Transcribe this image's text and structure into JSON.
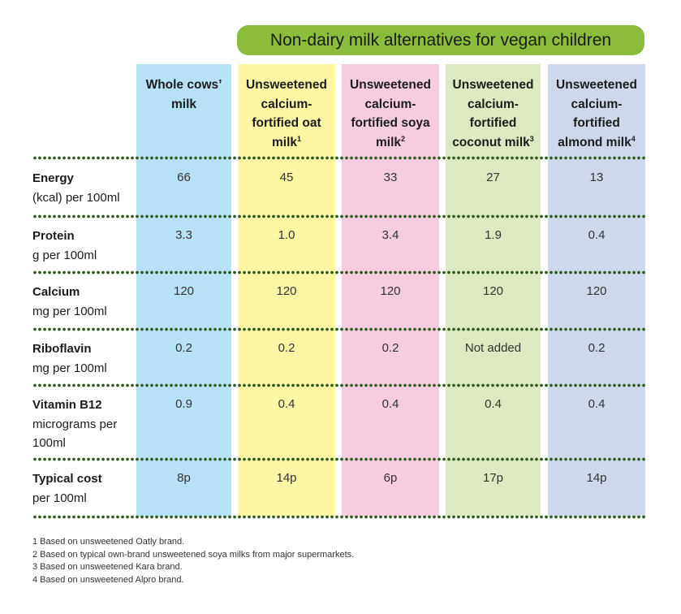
{
  "title": "Non-dairy milk alternatives for vegan children",
  "colors": {
    "banner": "#8cbc3b",
    "dots": "#2e5a1e",
    "cow": "#b7e2f6",
    "oat": "#fbf7a5",
    "soya": "#f6cde0",
    "coconut": "#dde9c3",
    "almond": "#cfd8ea"
  },
  "columns": [
    {
      "name": "Whole cows’ milk",
      "lines": [
        "Whole cows’",
        "milk"
      ],
      "sup": ""
    },
    {
      "name": "Unsweetened calcium-fortified oat milk",
      "lines": [
        "Unsweetened",
        "calcium-",
        "fortified oat",
        "milk"
      ],
      "sup": "1"
    },
    {
      "name": "Unsweetened calcium-fortified soya milk",
      "lines": [
        "Unsweetened",
        "calcium-",
        "fortified soya",
        "milk"
      ],
      "sup": "2"
    },
    {
      "name": "Unsweetened calcium-fortified coconut milk",
      "lines": [
        "Unsweetened",
        "calcium-",
        "fortified",
        "coconut milk"
      ],
      "sup": "3"
    },
    {
      "name": "Unsweetened calcium-fortified almond milk",
      "lines": [
        "Unsweetened",
        "calcium-",
        "fortified",
        "almond milk"
      ],
      "sup": "4"
    }
  ],
  "rows": [
    {
      "name": "Energy",
      "unit": "(kcal) per 100ml",
      "values": [
        "66",
        "45",
        "33",
        "27",
        "13"
      ]
    },
    {
      "name": "Protein",
      "unit": "g per 100ml",
      "values": [
        "3.3",
        "1.0",
        "3.4",
        "1.9",
        "0.4"
      ]
    },
    {
      "name": "Calcium",
      "unit": "mg per 100ml",
      "values": [
        "120",
        "120",
        "120",
        "120",
        "120"
      ]
    },
    {
      "name": "Riboflavin",
      "unit": "mg per 100ml",
      "values": [
        "0.2",
        "0.2",
        "0.2",
        "Not added",
        "0.2"
      ]
    },
    {
      "name": "Vitamin B12",
      "unit": "micrograms per 100ml",
      "values": [
        "0.9",
        "0.4",
        "0.4",
        "0.4",
        "0.4"
      ]
    },
    {
      "name": "Typical cost",
      "unit": "per 100ml",
      "values": [
        "8p",
        "14p",
        "6p",
        "17p",
        "14p"
      ]
    }
  ],
  "footnotes": [
    "1 Based on unsweetened Oatly brand.",
    "2 Based on typical own-brand unsweetened soya milks from major supermarkets.",
    "3 Based on unsweetened Kara brand.",
    "4 Based on unsweetened Alpro brand."
  ]
}
